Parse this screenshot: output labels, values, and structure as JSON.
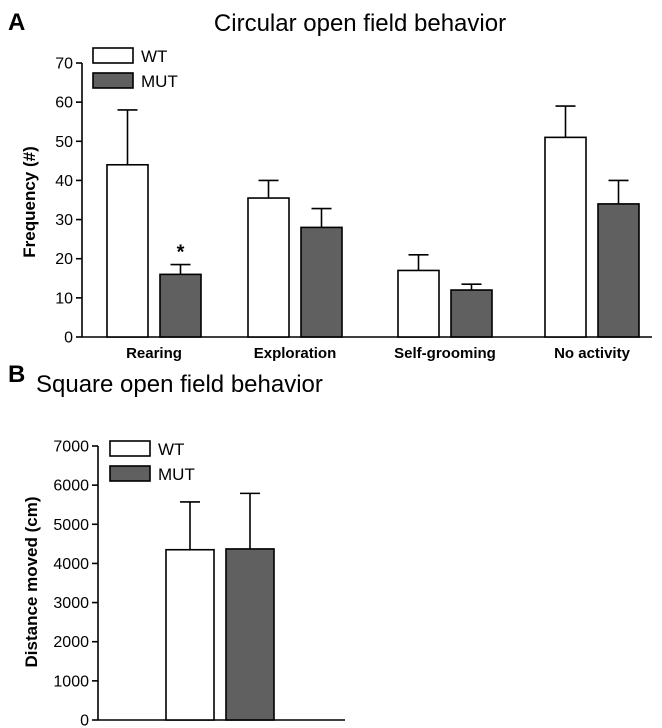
{
  "chart_data": [
    {
      "panel": "A",
      "type": "bar",
      "title": "Circular open field behavior",
      "xlabel": "",
      "ylabel": "Frequency (#)",
      "ylim": [
        0,
        70
      ],
      "yticks": [
        "0",
        "10",
        "20",
        "30",
        "40",
        "50",
        "60",
        "70"
      ],
      "categories": [
        "Rearing",
        "Exploration",
        "Self-grooming",
        "No activity"
      ],
      "series": [
        {
          "name": "WT",
          "values": [
            44,
            35.5,
            17,
            51
          ],
          "errors": [
            14,
            4.5,
            4,
            8
          ],
          "color": "#ffffff"
        },
        {
          "name": "MUT",
          "values": [
            16,
            28,
            12,
            34
          ],
          "errors": [
            2.5,
            4.8,
            1.5,
            6
          ],
          "color": "#606060"
        }
      ],
      "annotations": [
        {
          "text": "*",
          "category": "Rearing",
          "series": "MUT"
        }
      ],
      "legend_position": "top-left",
      "grid": false
    },
    {
      "panel": "B",
      "type": "bar",
      "title": "Square open field behavior",
      "xlabel": "",
      "ylabel": "Distance moved (cm)",
      "ylim": [
        0,
        7000
      ],
      "yticks": [
        "0",
        "1000",
        "2000",
        "3000",
        "4000",
        "5000",
        "6000",
        "7000"
      ],
      "categories": [
        ""
      ],
      "series": [
        {
          "name": "WT",
          "values": [
            4350
          ],
          "errors": [
            1220
          ],
          "color": "#ffffff"
        },
        {
          "name": "MUT",
          "values": [
            4370
          ],
          "errors": [
            1420
          ],
          "color": "#606060"
        }
      ],
      "legend_position": "top-left",
      "grid": false
    }
  ]
}
